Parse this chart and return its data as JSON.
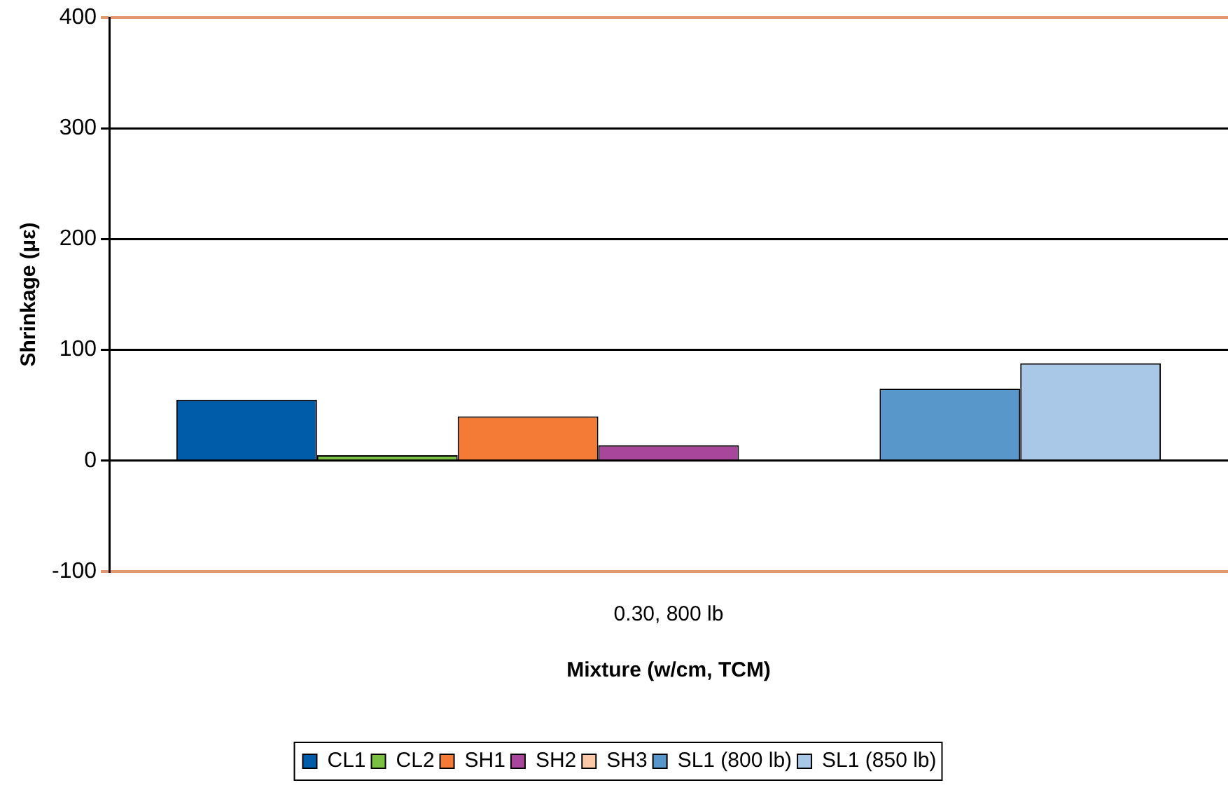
{
  "chart_data": {
    "type": "bar",
    "xlabel": "Mixture (w/cm, TCM)",
    "ylabel": "Shrinkage (με)",
    "categories": [
      "0.30, 800 lb"
    ],
    "series": [
      {
        "name": "CL1",
        "color": "#005ba8",
        "values": [
          55
        ]
      },
      {
        "name": "CL2",
        "color": "#7ac143",
        "values": [
          5
        ]
      },
      {
        "name": "SH1",
        "color": "#f47b36",
        "values": [
          40
        ]
      },
      {
        "name": "SH2",
        "color": "#a8469c",
        "values": [
          14
        ]
      },
      {
        "name": "SH3",
        "color": "#fbc8a8",
        "values": [
          null
        ]
      },
      {
        "name": "SL1 (800 lb)",
        "color": "#5897c9",
        "values": [
          65
        ]
      },
      {
        "name": "SL1 (850 lb)",
        "color": "#a9c8e8",
        "values": [
          88
        ]
      }
    ],
    "ylim": [
      -100,
      400
    ],
    "yticks": [
      -100,
      0,
      100,
      200,
      300,
      400
    ],
    "grid": "y",
    "legend": "bottom"
  }
}
